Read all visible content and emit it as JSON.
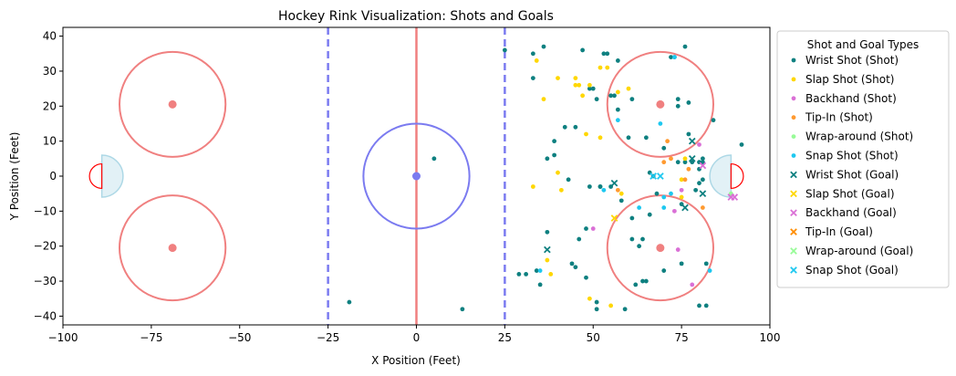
{
  "chart_data": {
    "type": "scatter",
    "title": "Hockey Rink Visualization: Shots and Goals",
    "xlabel": "X Position (Feet)",
    "ylabel": "Y Position (Feet)",
    "xlim": [
      -100,
      100
    ],
    "ylim": [
      -42.5,
      42.5
    ],
    "xticks": [
      -100,
      -75,
      -50,
      -25,
      0,
      25,
      50,
      75,
      100
    ],
    "yticks": [
      -40,
      -30,
      -20,
      -10,
      0,
      10,
      20,
      30,
      40
    ],
    "grid": false,
    "legend": {
      "title": "Shot and Goal Types",
      "placement": "outside-right-top"
    },
    "rink": {
      "center_line_x": 0,
      "blue_lines_x": [
        -25,
        25
      ],
      "center_circle": {
        "x": 0,
        "y": 0,
        "r": 15
      },
      "faceoff_circles": [
        {
          "x": -69,
          "y": 20.5,
          "r": 15
        },
        {
          "x": -69,
          "y": -20.5,
          "r": 15
        },
        {
          "x": 69,
          "y": 20.5,
          "r": 15
        },
        {
          "x": 69,
          "y": -20.5,
          "r": 15
        }
      ],
      "goal_lines_x": [
        -89,
        89
      ],
      "crease_radius": 6,
      "net_radius": 3.5,
      "colors": {
        "red": "#f08080",
        "blue": "#7b7bf0",
        "crease": "#add8e6",
        "net": "#ff0000"
      }
    },
    "series": [
      {
        "name": "Wrist Shot (Shot)",
        "marker": "dot",
        "color": "#0e8080",
        "points": [
          [
            25,
            36
          ],
          [
            33,
            35
          ],
          [
            33,
            28
          ],
          [
            36,
            37
          ],
          [
            35,
            -31
          ],
          [
            37,
            -16
          ],
          [
            37,
            5
          ],
          [
            39,
            10
          ],
          [
            42,
            14
          ],
          [
            44,
            -25
          ],
          [
            45,
            14
          ],
          [
            46,
            -18
          ],
          [
            47,
            36
          ],
          [
            49,
            25
          ],
          [
            48,
            -29
          ],
          [
            50,
            25
          ],
          [
            51,
            -36
          ],
          [
            51,
            -38
          ],
          [
            51,
            22
          ],
          [
            52,
            -3
          ],
          [
            53,
            35
          ],
          [
            54,
            35
          ],
          [
            55,
            -3
          ],
          [
            55,
            23
          ],
          [
            56,
            23
          ],
          [
            57,
            33
          ],
          [
            57,
            19
          ],
          [
            58,
            -7
          ],
          [
            59,
            -38
          ],
          [
            60,
            11
          ],
          [
            61,
            22
          ],
          [
            61,
            -18
          ],
          [
            62,
            -31
          ],
          [
            64,
            -30
          ],
          [
            65,
            -30
          ],
          [
            65,
            11
          ],
          [
            66,
            1
          ],
          [
            66,
            -11
          ],
          [
            67,
            0
          ],
          [
            68,
            -5
          ],
          [
            70,
            -27
          ],
          [
            72,
            34
          ],
          [
            73,
            34
          ],
          [
            74,
            20
          ],
          [
            75,
            -8
          ],
          [
            75,
            -25
          ],
          [
            76,
            37
          ],
          [
            77,
            12
          ],
          [
            78,
            4
          ],
          [
            79,
            -4
          ],
          [
            80,
            -37
          ],
          [
            80,
            -2
          ],
          [
            80,
            2
          ],
          [
            81,
            4
          ],
          [
            81,
            -1
          ],
          [
            81,
            5
          ],
          [
            82,
            -37
          ],
          [
            82,
            -25
          ],
          [
            84,
            16
          ],
          [
            92,
            9
          ],
          [
            43,
            -1
          ],
          [
            48,
            -15
          ],
          [
            49,
            -3
          ],
          [
            52,
            -3
          ],
          [
            61,
            -12
          ],
          [
            74,
            22
          ],
          [
            76,
            4
          ],
          [
            77,
            21
          ],
          [
            80,
            4
          ],
          [
            5,
            5
          ],
          [
            -19,
            -36
          ],
          [
            13,
            -38
          ],
          [
            29,
            -28
          ],
          [
            31,
            -28
          ],
          [
            34,
            -27
          ],
          [
            63,
            -20
          ],
          [
            64,
            -18
          ],
          [
            45,
            -26
          ],
          [
            39,
            6
          ],
          [
            70,
            8
          ],
          [
            74,
            4
          ]
        ]
      },
      {
        "name": "Slap Shot (Shot)",
        "marker": "dot",
        "color": "#ffd700",
        "points": [
          [
            34,
            33
          ],
          [
            36,
            22
          ],
          [
            40,
            28
          ],
          [
            40,
            1
          ],
          [
            45,
            26
          ],
          [
            46,
            26
          ],
          [
            47,
            23
          ],
          [
            48,
            12
          ],
          [
            49,
            -35
          ],
          [
            52,
            31
          ],
          [
            54,
            31
          ],
          [
            55,
            -37
          ],
          [
            57,
            24
          ],
          [
            58,
            -5
          ],
          [
            75,
            -1
          ],
          [
            75,
            -6
          ],
          [
            37,
            -24
          ],
          [
            41,
            -4
          ],
          [
            52,
            11
          ],
          [
            76,
            5
          ],
          [
            60,
            25
          ],
          [
            33,
            -3
          ],
          [
            45,
            28
          ],
          [
            49,
            26
          ],
          [
            38,
            -28
          ]
        ]
      },
      {
        "name": "Backhand (Shot)",
        "marker": "dot",
        "color": "#da70d6",
        "points": [
          [
            50,
            -15
          ],
          [
            73,
            -10
          ],
          [
            75,
            -4
          ],
          [
            78,
            -31
          ],
          [
            80,
            9
          ],
          [
            74,
            -21
          ]
        ]
      },
      {
        "name": "Tip-In (Shot)",
        "marker": "dot",
        "color": "#ff9a30",
        "points": [
          [
            71,
            10
          ],
          [
            72,
            5
          ],
          [
            76,
            -1
          ],
          [
            77,
            2
          ],
          [
            81,
            -9
          ],
          [
            57,
            -4
          ],
          [
            70,
            4
          ]
        ]
      },
      {
        "name": "Wrap-around (Shot)",
        "marker": "dot",
        "color": "#98fb98",
        "points": [
          [
            89,
            -5
          ]
        ]
      },
      {
        "name": "Snap Shot (Shot)",
        "marker": "dot",
        "color": "#1ec8f0",
        "points": [
          [
            35,
            -27
          ],
          [
            53,
            -4
          ],
          [
            57,
            16
          ],
          [
            69,
            15
          ],
          [
            70,
            -9
          ],
          [
            72,
            -5
          ],
          [
            73,
            34
          ],
          [
            83,
            -27
          ],
          [
            63,
            -9
          ],
          [
            70,
            -6
          ]
        ]
      },
      {
        "name": "Wrist Shot (Goal)",
        "marker": "x",
        "color": "#0e8080",
        "points": [
          [
            37,
            -21
          ],
          [
            56,
            -2
          ],
          [
            78,
            10
          ],
          [
            78,
            5
          ],
          [
            81,
            -5
          ],
          [
            76,
            -9
          ]
        ]
      },
      {
        "name": "Slap Shot (Goal)",
        "marker": "x",
        "color": "#ffd700",
        "points": [
          [
            56,
            -12
          ]
        ]
      },
      {
        "name": "Backhand (Goal)",
        "marker": "x",
        "color": "#da70d6",
        "points": [
          [
            81,
            3
          ],
          [
            89,
            -6
          ],
          [
            90,
            -6
          ]
        ]
      },
      {
        "name": "Tip-In (Goal)",
        "marker": "x",
        "color": "#ff8c00",
        "points": [
          []
        ]
      },
      {
        "name": "Wrap-around (Goal)",
        "marker": "x",
        "color": "#98fb98",
        "points": [
          []
        ]
      },
      {
        "name": "Snap Shot (Goal)",
        "marker": "x",
        "color": "#1ec8f0",
        "points": [
          [
            67,
            0
          ],
          [
            69,
            0
          ]
        ]
      }
    ]
  }
}
